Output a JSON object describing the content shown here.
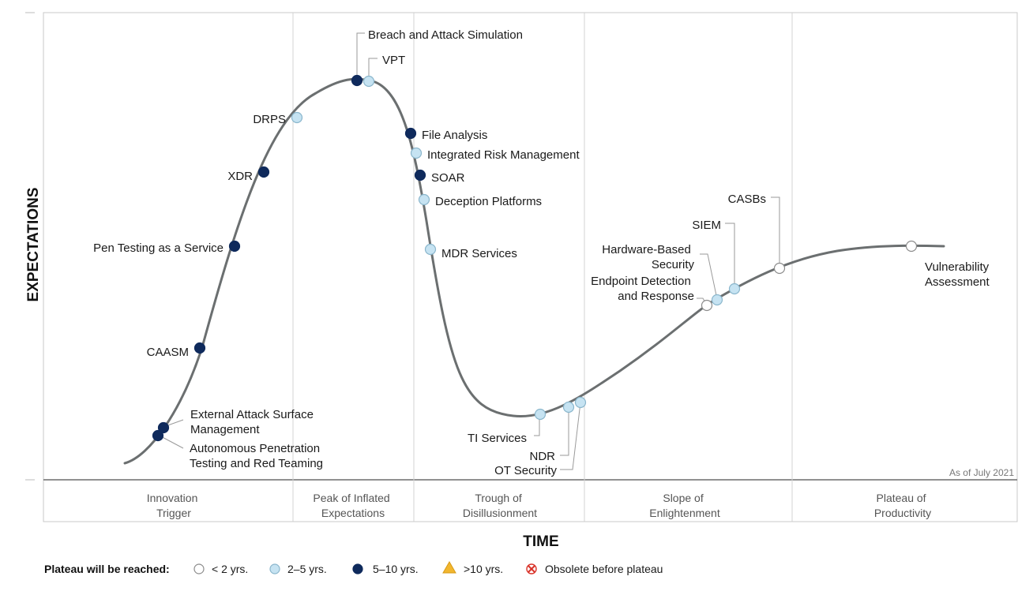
{
  "axis": {
    "y_title": "EXPECTATIONS",
    "x_title": "TIME"
  },
  "as_of": "As of July 2021",
  "phases": [
    {
      "id": "innovation",
      "lines": [
        "Innovation",
        "Trigger"
      ]
    },
    {
      "id": "peak",
      "lines": [
        "Peak of Inflated",
        "Expectations"
      ]
    },
    {
      "id": "trough",
      "lines": [
        "Trough of",
        "Disillusionment"
      ]
    },
    {
      "id": "slope",
      "lines": [
        "Slope of",
        "Enlightenment"
      ]
    },
    {
      "id": "plateau",
      "lines": [
        "Plateau of",
        "Productivity"
      ]
    }
  ],
  "legend": {
    "title": "Plateau will be reached:",
    "items": [
      {
        "id": "lt2",
        "label": "< 2 yrs.",
        "color": "#ffffff"
      },
      {
        "id": "2to5",
        "label": "2–5 yrs.",
        "color": "#c6e3f2"
      },
      {
        "id": "5to10",
        "label": "5–10 yrs.",
        "color": "#0f2a5c"
      },
      {
        "id": "gt10",
        "label": ">10 yrs.",
        "color": "#f2b62e"
      },
      {
        "id": "obsolete",
        "label": "Obsolete before plateau",
        "color": "#d9342b"
      }
    ]
  },
  "technologies": [
    {
      "id": "breach-and-attack-simulation",
      "lines": [
        "Breach and Attack Simulation"
      ],
      "status": "5to10"
    },
    {
      "id": "vpt",
      "lines": [
        "VPT"
      ],
      "status": "2to5"
    },
    {
      "id": "drps",
      "lines": [
        "DRPS"
      ],
      "status": "2to5"
    },
    {
      "id": "xdr",
      "lines": [
        "XDR"
      ],
      "status": "5to10"
    },
    {
      "id": "pen-testing-as-a-service",
      "lines": [
        "Pen Testing as a Service"
      ],
      "status": "5to10"
    },
    {
      "id": "caasm",
      "lines": [
        "CAASM"
      ],
      "status": "5to10"
    },
    {
      "id": "external-attack-surface-management",
      "lines": [
        "External Attack Surface",
        "Management"
      ],
      "status": "5to10"
    },
    {
      "id": "autonomous-penetration-testing",
      "lines": [
        "Autonomous Penetration",
        "Testing and Red Teaming"
      ],
      "status": "5to10"
    },
    {
      "id": "file-analysis",
      "lines": [
        "File Analysis"
      ],
      "status": "5to10"
    },
    {
      "id": "integrated-risk-management",
      "lines": [
        "Integrated Risk Management"
      ],
      "status": "2to5"
    },
    {
      "id": "soar",
      "lines": [
        "SOAR"
      ],
      "status": "5to10"
    },
    {
      "id": "deception-platforms",
      "lines": [
        "Deception Platforms"
      ],
      "status": "2to5"
    },
    {
      "id": "mdr-services",
      "lines": [
        "MDR Services"
      ],
      "status": "2to5"
    },
    {
      "id": "ti-services",
      "lines": [
        "TI Services"
      ],
      "status": "2to5"
    },
    {
      "id": "ndr",
      "lines": [
        "NDR"
      ],
      "status": "2to5"
    },
    {
      "id": "ot-security",
      "lines": [
        "OT Security"
      ],
      "status": "2to5"
    },
    {
      "id": "endpoint-detection-and-response",
      "lines": [
        "Endpoint Detection",
        "and Response"
      ],
      "status": "lt2"
    },
    {
      "id": "hardware-based-security",
      "lines": [
        "Hardware-Based",
        "Security"
      ],
      "status": "2to5"
    },
    {
      "id": "siem",
      "lines": [
        "SIEM"
      ],
      "status": "2to5"
    },
    {
      "id": "casbs",
      "lines": [
        "CASBs"
      ],
      "status": "lt2"
    },
    {
      "id": "vulnerability-assessment",
      "lines": [
        "Vulnerability",
        "Assessment"
      ],
      "status": "lt2"
    }
  ]
}
